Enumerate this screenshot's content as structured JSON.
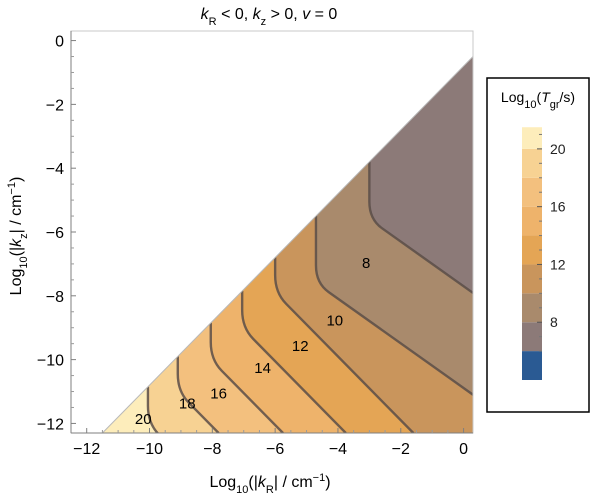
{
  "chart_data": {
    "type": "contour",
    "title_parts": [
      "k",
      "R",
      " < 0, ",
      "k",
      "z",
      " > 0, ",
      "v",
      " = 0"
    ],
    "xlabel_parts": [
      "Log",
      "10",
      "(|",
      "k",
      "R",
      "| / cm",
      "−1",
      ")"
    ],
    "ylabel_parts": [
      "Log",
      "10",
      "(|",
      "k",
      "z",
      "| / cm",
      "−1",
      ")"
    ],
    "xlim": [
      -12.5,
      0.3
    ],
    "ylim": [
      -12.3,
      0.3
    ],
    "x_ticks": [
      -12,
      -10,
      -8,
      -6,
      -4,
      -2,
      0
    ],
    "y_ticks": [
      0,
      -2,
      -4,
      -6,
      -8,
      -10,
      -12
    ],
    "x_tick_labels": [
      "−12",
      "−10",
      "−8",
      "−6",
      "−4",
      "−2",
      "0"
    ],
    "y_tick_labels": [
      "0",
      "−2",
      "−4",
      "−6",
      "−8",
      "−10",
      "−12"
    ],
    "domain_boundary": "log10|kz| <= log10|kR| - 0.8",
    "contour_levels": [
      8,
      10,
      12,
      14,
      16,
      18,
      20
    ],
    "contour_labels": [
      {
        "text": "8",
        "x": -3.1,
        "y": -7.0
      },
      {
        "text": "10",
        "x": -4.1,
        "y": -8.8
      },
      {
        "text": "12",
        "x": -5.2,
        "y": -9.6
      },
      {
        "text": "14",
        "x": -6.4,
        "y": -10.3
      },
      {
        "text": "16",
        "x": -7.8,
        "y": -11.1
      },
      {
        "text": "18",
        "x": -8.8,
        "y": -11.4
      },
      {
        "text": "20",
        "x": -10.2,
        "y": -11.9
      }
    ],
    "region_colors": {
      "lt8": "#8c7a78",
      "8-10": "#a98a6c",
      "10-12": "#c9955c",
      "12-14": "#e4a555",
      "14-16": "#eeb36b",
      "16-18": "#f3c07e",
      "18-20": "#f7d293",
      "gt20": "#fdedbb"
    },
    "legend": {
      "title_parts": [
        "Log",
        "10",
        "(",
        "T",
        "gr",
        "/s)"
      ],
      "ticks": [
        20,
        16,
        12,
        8
      ],
      "tick_labels": [
        "20",
        "16",
        "12",
        "8"
      ],
      "range": [
        4,
        22
      ],
      "bands": [
        {
          "from": 4,
          "to": 6,
          "color": "#2a5a93"
        },
        {
          "from": 6,
          "to": 8,
          "color": "#8c7a78"
        },
        {
          "from": 8,
          "to": 10,
          "color": "#a98a6c"
        },
        {
          "from": 10,
          "to": 12,
          "color": "#c9955c"
        },
        {
          "from": 12,
          "to": 14,
          "color": "#e4a555"
        },
        {
          "from": 14,
          "to": 16,
          "color": "#eeb36b"
        },
        {
          "from": 16,
          "to": 18,
          "color": "#f3c07e"
        },
        {
          "from": 18,
          "to": 20,
          "color": "#f7d293"
        },
        {
          "from": 20,
          "to": 21.5,
          "color": "#fdedbb"
        }
      ]
    }
  }
}
